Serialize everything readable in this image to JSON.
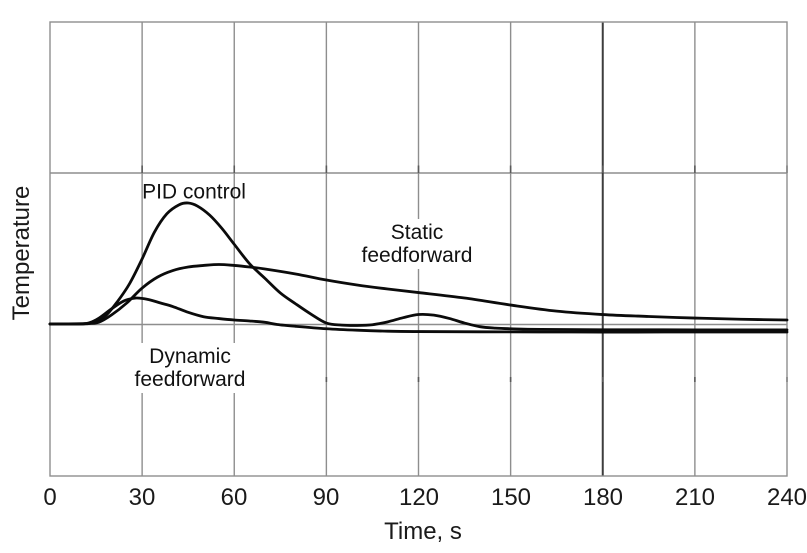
{
  "figure": {
    "ylabel": "Temperature",
    "xlabel": "Time, s",
    "x_tick_labels": [
      "0",
      "30",
      "60",
      "90",
      "120",
      "150",
      "180",
      "210",
      "240"
    ],
    "curve_labels": {
      "pid": "PID control",
      "static_line1": "Static",
      "static_line2": "feedforward",
      "dynamic_line1": "Dynamic",
      "dynamic_line2": "feedforward"
    }
  },
  "colors": {
    "background": "#ffffff",
    "grid": "#8e8e8e",
    "grid_dark": "#3d3d3d",
    "border": "#8e8e8e",
    "tick": "#5a5a5a",
    "curve": "#0b0b0b",
    "text": "#1a1a1a"
  },
  "chart_data": {
    "type": "line",
    "title": "",
    "xlabel": "Time, s",
    "ylabel": "Temperature",
    "x_range": [
      0,
      240
    ],
    "x_ticks": [
      0,
      30,
      60,
      90,
      120,
      150,
      180,
      210,
      240
    ],
    "y_axis_note": "no numeric y ticks; values are relative temperature deviation from setpoint, normalized so PID peak = 1; setpoint line coincides with the lower horizontal gridline",
    "grid": true,
    "gridlines": {
      "vertical_every_s": 30,
      "darker_vertical_at_s": 180,
      "horizontal_count_inside": 2
    },
    "legend_position": "inline labels next to curves",
    "series": [
      {
        "name": "PID control",
        "points": [
          [
            0,
            0.004
          ],
          [
            10,
            0.004
          ],
          [
            14,
            0.016
          ],
          [
            18,
            0.07
          ],
          [
            22,
            0.19
          ],
          [
            26,
            0.34
          ],
          [
            30,
            0.54
          ],
          [
            34,
            0.76
          ],
          [
            38,
            0.91
          ],
          [
            42,
            0.985
          ],
          [
            45,
            1.0
          ],
          [
            48,
            0.975
          ],
          [
            52,
            0.9
          ],
          [
            56,
            0.79
          ],
          [
            60,
            0.66
          ],
          [
            65,
            0.5
          ],
          [
            70,
            0.38
          ],
          [
            75,
            0.26
          ],
          [
            80,
            0.17
          ],
          [
            85,
            0.085
          ],
          [
            90,
            0.012
          ],
          [
            95,
            -0.005
          ],
          [
            100,
            -0.008
          ],
          [
            105,
            -0.002
          ],
          [
            110,
            0.022
          ],
          [
            115,
            0.056
          ],
          [
            120,
            0.082
          ],
          [
            125,
            0.077
          ],
          [
            130,
            0.05
          ],
          [
            135,
            0.012
          ],
          [
            140,
            -0.018
          ],
          [
            145,
            -0.03
          ],
          [
            150,
            -0.035
          ],
          [
            160,
            -0.04
          ],
          [
            180,
            -0.043
          ],
          [
            210,
            -0.044
          ],
          [
            240,
            -0.044
          ]
        ]
      },
      {
        "name": "Static feedforward",
        "points": [
          [
            0,
            0.004
          ],
          [
            12,
            0.008
          ],
          [
            16,
            0.02
          ],
          [
            20,
            0.078
          ],
          [
            25,
            0.177
          ],
          [
            30,
            0.3
          ],
          [
            35,
            0.39
          ],
          [
            40,
            0.444
          ],
          [
            45,
            0.473
          ],
          [
            50,
            0.486
          ],
          [
            55,
            0.494
          ],
          [
            60,
            0.486
          ],
          [
            65,
            0.473
          ],
          [
            70,
            0.457
          ],
          [
            80,
            0.416
          ],
          [
            90,
            0.366
          ],
          [
            100,
            0.325
          ],
          [
            110,
            0.292
          ],
          [
            120,
            0.263
          ],
          [
            135,
            0.218
          ],
          [
            150,
            0.16
          ],
          [
            165,
            0.11
          ],
          [
            180,
            0.082
          ],
          [
            195,
            0.066
          ],
          [
            210,
            0.053
          ],
          [
            225,
            0.043
          ],
          [
            240,
            0.037
          ]
        ]
      },
      {
        "name": "Dynamic feedforward",
        "points": [
          [
            0,
            0.004
          ],
          [
            10,
            0.004
          ],
          [
            13,
            0.016
          ],
          [
            16,
            0.053
          ],
          [
            20,
            0.128
          ],
          [
            24,
            0.193
          ],
          [
            28,
            0.218
          ],
          [
            32,
            0.206
          ],
          [
            36,
            0.177
          ],
          [
            40,
            0.148
          ],
          [
            45,
            0.1
          ],
          [
            50,
            0.064
          ],
          [
            55,
            0.049
          ],
          [
            60,
            0.037
          ],
          [
            65,
            0.029
          ],
          [
            70,
            0.018
          ],
          [
            74,
            0.0
          ],
          [
            80,
            -0.015
          ],
          [
            90,
            -0.035
          ],
          [
            100,
            -0.047
          ],
          [
            110,
            -0.055
          ],
          [
            120,
            -0.058
          ],
          [
            140,
            -0.06
          ],
          [
            170,
            -0.062
          ],
          [
            200,
            -0.062
          ],
          [
            240,
            -0.062
          ]
        ]
      }
    ]
  }
}
